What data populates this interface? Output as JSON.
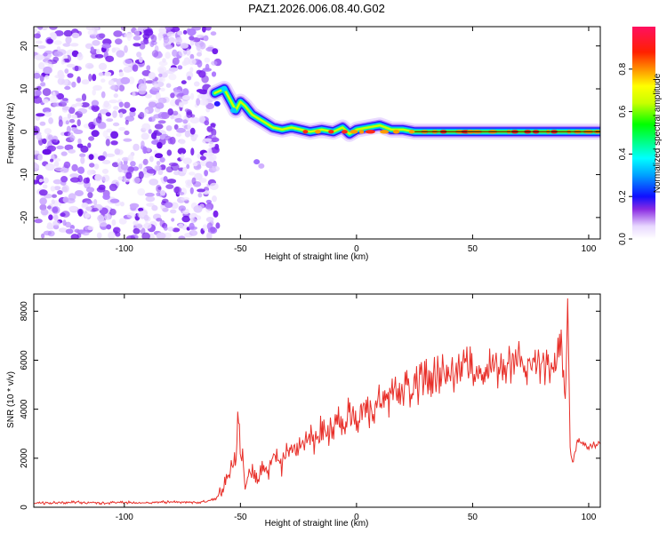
{
  "chart_data": [
    {
      "type": "heatmap",
      "title": "PAZ1.2026.006.08.40.G02",
      "xlabel": "Height of straight line (km)",
      "ylabel": "Frequency (Hz)",
      "xlim": [
        -139,
        105
      ],
      "ylim": [
        -25,
        24.5
      ],
      "xticks": [
        -100,
        -50,
        0,
        50,
        100
      ],
      "yticks": [
        -20,
        -10,
        0,
        10,
        20
      ],
      "xtick_labels": [
        "-100",
        "-50",
        "0",
        "50",
        "100"
      ],
      "ytick_labels": [
        "-20",
        "-10",
        "0",
        "10",
        "20"
      ],
      "colorbar": {
        "label": "Normalized spectral amplitude",
        "range": [
          0,
          1
        ],
        "ticks": [
          0.0,
          0.2,
          0.4,
          0.6,
          0.8
        ],
        "tick_labels": [
          "0.0",
          "0.2",
          "0.4",
          "0.6",
          "0.8"
        ]
      },
      "noise_region_x": [
        -139,
        -62
      ],
      "reference_line_frequency": 0,
      "signal_track": [
        {
          "x": -61,
          "y": 9
        },
        {
          "x": -57,
          "y": 10
        },
        {
          "x": -54,
          "y": 7
        },
        {
          "x": -52,
          "y": 5
        },
        {
          "x": -50,
          "y": 7
        },
        {
          "x": -48,
          "y": 6
        },
        {
          "x": -45,
          "y": 4
        },
        {
          "x": -42,
          "y": 3
        },
        {
          "x": -39,
          "y": 2
        },
        {
          "x": -36,
          "y": 1
        },
        {
          "x": -32,
          "y": 0.5
        },
        {
          "x": -28,
          "y": 1
        },
        {
          "x": -24,
          "y": 0.5
        },
        {
          "x": -20,
          "y": 0
        },
        {
          "x": -15,
          "y": 0.5
        },
        {
          "x": -10,
          "y": 0
        },
        {
          "x": -6,
          "y": 1
        },
        {
          "x": -3,
          "y": -0.5
        },
        {
          "x": 0,
          "y": 0.5
        },
        {
          "x": 5,
          "y": 1
        },
        {
          "x": 10,
          "y": 1.5
        },
        {
          "x": 15,
          "y": 0.5
        },
        {
          "x": 20,
          "y": 0.5
        },
        {
          "x": 25,
          "y": 0
        },
        {
          "x": 30,
          "y": 0
        },
        {
          "x": 40,
          "y": 0
        },
        {
          "x": 50,
          "y": 0
        },
        {
          "x": 60,
          "y": 0
        },
        {
          "x": 70,
          "y": 0
        },
        {
          "x": 80,
          "y": 0
        },
        {
          "x": 90,
          "y": 0
        },
        {
          "x": 100,
          "y": 0
        },
        {
          "x": 105,
          "y": 0
        }
      ]
    },
    {
      "type": "line",
      "title": "",
      "xlabel": "Height of straight line (km)",
      "ylabel": "SNR (10 * v/v)",
      "xlim": [
        -139,
        105
      ],
      "ylim": [
        0,
        8700
      ],
      "xticks": [
        -100,
        -50,
        0,
        50,
        100
      ],
      "yticks": [
        0,
        2000,
        4000,
        6000,
        8000
      ],
      "xtick_labels": [
        "-100",
        "-50",
        "0",
        "50",
        "100"
      ],
      "ytick_labels": [
        "0",
        "2000",
        "4000",
        "6000",
        "8000"
      ],
      "series": [
        {
          "name": "SNR",
          "color": "#e8302a",
          "x": [
            -139,
            -130,
            -120,
            -110,
            -100,
            -90,
            -80,
            -70,
            -65,
            -62,
            -60,
            -58,
            -56,
            -54,
            -52,
            -51,
            -50,
            -49,
            -48,
            -46,
            -44,
            -42,
            -40,
            -38,
            -36,
            -34,
            -32,
            -30,
            -28,
            -25,
            -20,
            -15,
            -10,
            -5,
            0,
            5,
            10,
            15,
            20,
            25,
            30,
            35,
            40,
            45,
            50,
            55,
            60,
            65,
            70,
            75,
            80,
            85,
            88,
            89,
            90,
            91,
            92,
            93,
            95,
            100,
            105
          ],
          "y": [
            150,
            180,
            200,
            170,
            190,
            180,
            220,
            200,
            230,
            300,
            400,
            700,
            1100,
            1500,
            1900,
            3600,
            2200,
            2000,
            800,
            1300,
            1400,
            1200,
            1600,
            1500,
            2000,
            2100,
            1700,
            2300,
            2200,
            2600,
            2800,
            3000,
            3300,
            3500,
            3800,
            4000,
            4300,
            4600,
            4800,
            5000,
            5200,
            5400,
            5500,
            5600,
            5800,
            5600,
            5700,
            5900,
            6000,
            5800,
            5700,
            5400,
            6500,
            6000,
            4200,
            8600,
            2500,
            1700,
            2700,
            2500,
            2600
          ]
        }
      ]
    }
  ]
}
